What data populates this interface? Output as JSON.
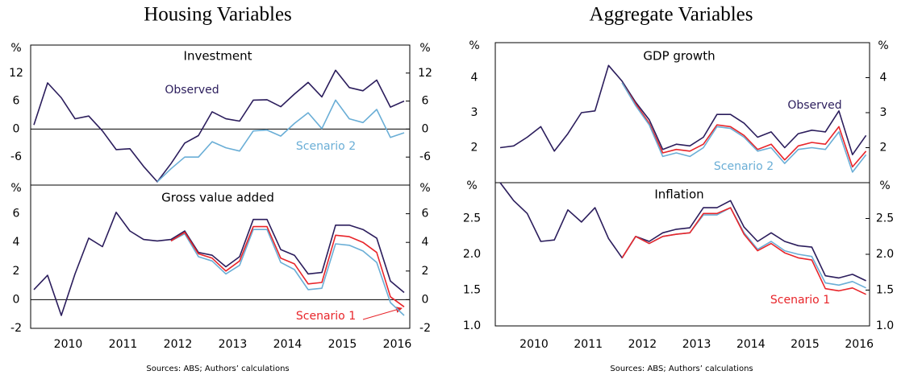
{
  "headers": [
    "Housing Variables",
    "Aggregate Variables"
  ],
  "sources": [
    "Sources: ABS; Authors’ calculations",
    "Sources: ABS; Authors’ calculations"
  ],
  "chart_data": [
    {
      "type": "line",
      "title": "Investment",
      "y_label": "%",
      "zero_line": true,
      "ylim": [
        -12,
        18
      ],
      "yticks": [
        -6,
        0,
        6,
        12
      ],
      "series": [
        {
          "name": "Observed",
          "color": "#2b1d5c",
          "values": [
            0.9,
            9.9,
            6.7,
            2.2,
            2.8,
            -0.4,
            -4.4,
            -4.2,
            -8,
            -11.3,
            -7.4,
            -3,
            -1.4,
            3.7,
            2.2,
            1.7,
            6.2,
            6.3,
            4.8,
            7.5,
            10,
            6.9,
            12.6,
            8.9,
            8.2,
            10.5,
            4.7,
            6.0
          ]
        },
        {
          "name": "Scenario 2",
          "color": "#6aaed6",
          "values": [
            null,
            null,
            null,
            null,
            null,
            null,
            null,
            null,
            null,
            -11.3,
            -8.5,
            -6,
            -6,
            -2.7,
            -4,
            -4.7,
            -0.4,
            -0.2,
            -1.5,
            1.2,
            3.5,
            0.1,
            6.2,
            2.2,
            1.4,
            4.2,
            -1.8,
            -0.8
          ]
        }
      ]
    },
    {
      "type": "line",
      "title": "Gross value added",
      "y_label": "%",
      "zero_line": true,
      "ylim": [
        -2,
        8
      ],
      "yticks": [
        -2,
        0,
        2,
        4,
        6
      ],
      "categories": [
        null,
        null,
        "2010",
        null,
        null,
        null,
        "2011",
        null,
        null,
        null,
        "2012",
        null,
        null,
        null,
        "2013",
        null,
        null,
        null,
        "2014",
        null,
        null,
        null,
        "2015",
        null,
        null,
        null,
        "2016",
        null
      ],
      "series": [
        {
          "color": "#2b1d5c",
          "values": [
            0.7,
            1.7,
            -1.1,
            1.8,
            4.3,
            3.7,
            6.1,
            4.8,
            4.2,
            4.1,
            4.2,
            4.8,
            3.3,
            3.1,
            2.3,
            3.0,
            5.6,
            5.6,
            3.5,
            3.1,
            1.8,
            1.9,
            5.2,
            5.2,
            4.9,
            4.3,
            1.3,
            0.5
          ]
        },
        {
          "color": "#6aaed6",
          "values": [
            null,
            null,
            null,
            null,
            null,
            null,
            null,
            null,
            null,
            null,
            4.1,
            4.6,
            3.0,
            2.7,
            1.8,
            2.4,
            4.9,
            4.9,
            2.6,
            2.1,
            0.7,
            0.8,
            3.9,
            3.8,
            3.4,
            2.6,
            -0.2,
            -1.1
          ]
        },
        {
          "name": "Scenario 1",
          "color": "#e8252a",
          "values": [
            null,
            null,
            null,
            null,
            null,
            null,
            null,
            null,
            null,
            null,
            4.1,
            4.7,
            3.2,
            2.9,
            2.0,
            2.7,
            5.1,
            5.1,
            2.9,
            2.5,
            1.1,
            1.2,
            4.5,
            4.4,
            4.0,
            3.3,
            0.2,
            -0.5
          ]
        }
      ]
    },
    {
      "type": "line",
      "title": "GDP growth",
      "y_label": "%",
      "zero_line": false,
      "ylim": [
        1,
        5
      ],
      "yticks": [
        2,
        3,
        4
      ],
      "series": [
        {
          "name": "Observed",
          "color": "#2b1d5c",
          "values": [
            2.0,
            2.05,
            2.3,
            2.6,
            1.9,
            2.4,
            3.0,
            3.05,
            4.35,
            3.9,
            3.3,
            2.8,
            1.95,
            2.1,
            2.05,
            2.3,
            2.95,
            2.95,
            2.7,
            2.3,
            2.45,
            2.0,
            2.4,
            2.5,
            2.45,
            3.05,
            1.8,
            2.35
          ]
        },
        {
          "color": "#e8252a",
          "values": [
            null,
            null,
            null,
            null,
            null,
            null,
            null,
            null,
            null,
            3.85,
            3.25,
            2.7,
            1.85,
            1.95,
            1.9,
            2.1,
            2.65,
            2.6,
            2.35,
            1.95,
            2.1,
            1.65,
            2.05,
            2.15,
            2.1,
            2.6,
            1.45,
            1.9
          ]
        },
        {
          "name": "Scenario 2",
          "color": "#6aaed6",
          "values": [
            null,
            null,
            null,
            null,
            null,
            null,
            null,
            null,
            null,
            3.85,
            3.2,
            2.65,
            1.75,
            1.85,
            1.75,
            2.0,
            2.6,
            2.55,
            2.3,
            1.9,
            2.0,
            1.55,
            1.95,
            2.0,
            1.95,
            2.45,
            1.3,
            1.8
          ]
        }
      ]
    },
    {
      "type": "line",
      "title": "Inflation",
      "y_label": "%",
      "zero_line": false,
      "ylim": [
        1,
        3
      ],
      "yticks": [
        {
          "value": 1,
          "label": "1.0"
        },
        1.5,
        {
          "value": 2,
          "label": "2.0"
        },
        2.5
      ],
      "categories": [
        null,
        null,
        "2010",
        null,
        null,
        null,
        "2011",
        null,
        null,
        null,
        "2012",
        null,
        null,
        null,
        "2013",
        null,
        null,
        null,
        "2014",
        null,
        null,
        null,
        "2015",
        null,
        null,
        null,
        "2016",
        null
      ],
      "series": [
        {
          "color": "#2b1d5c",
          "values": [
            3.0,
            2.75,
            2.57,
            2.18,
            2.2,
            2.62,
            2.45,
            2.65,
            2.22,
            1.95,
            2.25,
            2.18,
            2.3,
            2.35,
            2.37,
            2.65,
            2.65,
            2.75,
            2.38,
            2.18,
            2.3,
            2.18,
            2.12,
            2.1,
            1.7,
            1.67,
            1.72,
            1.63
          ]
        },
        {
          "color": "#6aaed6",
          "values": [
            null,
            null,
            null,
            null,
            null,
            null,
            null,
            null,
            null,
            1.95,
            2.25,
            2.15,
            2.25,
            2.28,
            2.3,
            2.55,
            2.55,
            2.65,
            2.3,
            2.07,
            2.18,
            2.05,
            2.0,
            1.97,
            1.6,
            1.57,
            1.62,
            1.53
          ]
        },
        {
          "name": "Scenario 1",
          "color": "#e8252a",
          "values": [
            null,
            null,
            null,
            null,
            null,
            null,
            null,
            null,
            null,
            1.95,
            2.25,
            2.15,
            2.25,
            2.28,
            2.3,
            2.57,
            2.57,
            2.65,
            2.28,
            2.05,
            2.15,
            2.02,
            1.95,
            1.92,
            1.52,
            1.49,
            1.53,
            1.44
          ]
        }
      ]
    }
  ]
}
